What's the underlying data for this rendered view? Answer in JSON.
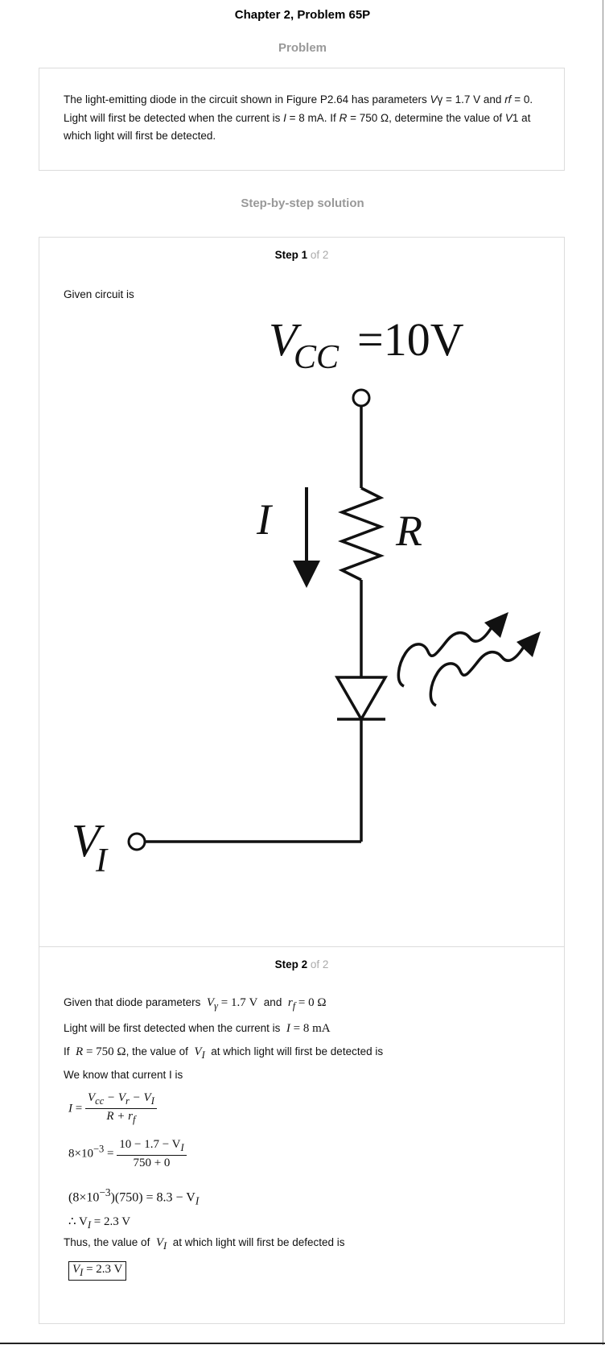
{
  "header": {
    "title": "Chapter 2, Problem 65P"
  },
  "problem": {
    "heading": "Problem",
    "text_parts": [
      "The light-emitting diode in the circuit shown in Figure P2.64 has parameters ",
      "V",
      "γ = 1.7 V and ",
      "rf",
      " = 0. Light will first be detected when the current is ",
      "I",
      " = 8 mA. If ",
      "R",
      " = 750 Ω, determine the value of ",
      "V",
      "1 at which light will first be detected."
    ]
  },
  "solution": {
    "heading": "Step-by-step solution",
    "step1": {
      "label": "Step 1",
      "of": "of 2",
      "intro": "Given circuit is",
      "circuit": {
        "vcc_main": "V",
        "vcc_sub": "CC",
        "vcc_value": "=10V",
        "current_label": "I",
        "resistor_label": "R",
        "input_main": "V",
        "input_sub": "I"
      }
    },
    "step2": {
      "label": "Step 2",
      "of": "of 2",
      "line1_pre": "Given that diode parameters",
      "line1_m1": "V",
      "line1_m1_sub": "γ",
      "line1_m1_rest": " = 1.7 V",
      "line1_and": "and",
      "line1_m2": "r",
      "line1_m2_sub": "f",
      "line1_m2_rest": " = 0 Ω",
      "line2_pre": "Light will be first detected when the current is",
      "line2_m": "I",
      "line2_m_rest": " = 8 mA",
      "line3_pre": "If",
      "line3_m": "R",
      "line3_m_rest": " = 750 Ω",
      "line3_mid": ", the value of",
      "line3_m2": "V",
      "line3_m2_sub": "I",
      "line3_post": "at which light will first be detected is",
      "line4": "We know that current I is",
      "eq1_lhs": "I",
      "eq1_eq": " = ",
      "eq1_num": "V",
      "eq1_num_sub": "cc",
      "eq1_num_rest1": " − V",
      "eq1_num_sub2": "r",
      "eq1_num_rest2": " − V",
      "eq1_num_sub3": "I",
      "eq1_den": "R + r",
      "eq1_den_sub": "f",
      "eq2_lhs": "8×10",
      "eq2_exp": "−3",
      "eq2_eq": " = ",
      "eq2_num": "10 − 1.7 − V",
      "eq2_num_sub": "I",
      "eq2_den": "750 + 0",
      "eq3_a": "(8×10",
      "eq3_exp": "−3",
      "eq3_b": ")(750) = 8.3 − V",
      "eq3_sub": "I",
      "eq4_a": "∴ V",
      "eq4_sub": "I",
      "eq4_b": " = 2.3 V",
      "line5_pre": "Thus, the value of",
      "line5_m": "V",
      "line5_m_sub": "I",
      "line5_post": "at which light will first be defected is",
      "answer_a": "V",
      "answer_sub": "I",
      "answer_b": " = 2.3 V"
    }
  }
}
